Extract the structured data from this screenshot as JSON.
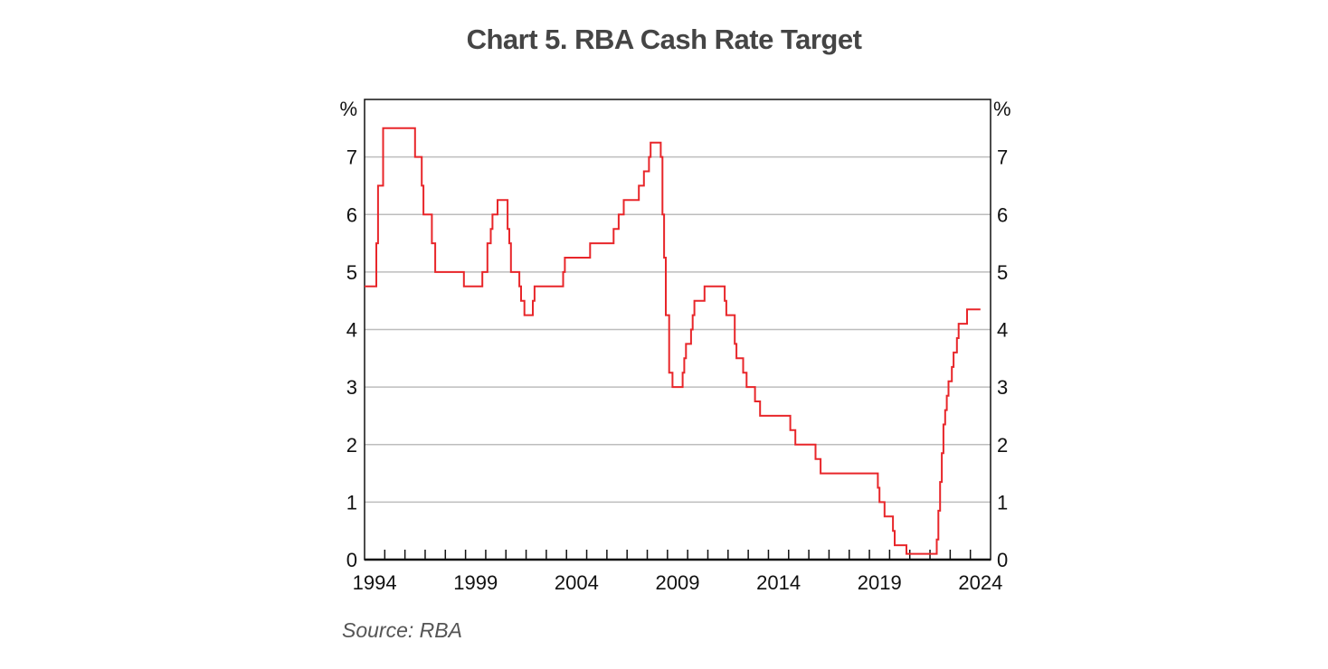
{
  "title": "Chart 5. RBA Cash Rate Target",
  "source": "Source: RBA",
  "chart_data": {
    "type": "line",
    "step": true,
    "title": "Chart 5. RBA Cash Rate Target",
    "ylabel_left": "%",
    "ylabel_right": "%",
    "xlim": [
      1994,
      2025
    ],
    "ylim": [
      0,
      8
    ],
    "y_ticks": [
      0,
      1,
      2,
      3,
      4,
      5,
      6,
      7
    ],
    "x_tick_labels": [
      "1994",
      "1999",
      "2004",
      "2009",
      "2014",
      "2019",
      "2024"
    ],
    "grid": "horizontal",
    "line_color": "#e8262a",
    "grid_color": "#bdbdbd",
    "series": [
      {
        "points": [
          [
            "1994-01",
            4.75
          ],
          [
            "1994-08",
            5.5
          ],
          [
            "1994-09",
            6.5
          ],
          [
            "1994-12",
            7.5
          ],
          [
            "1996-07",
            7.0
          ],
          [
            "1996-11",
            6.5
          ],
          [
            "1996-12",
            6.0
          ],
          [
            "1997-05",
            5.5
          ],
          [
            "1997-07",
            5.0
          ],
          [
            "1998-12",
            4.75
          ],
          [
            "1999-11",
            5.0
          ],
          [
            "2000-02",
            5.5
          ],
          [
            "2000-04",
            5.75
          ],
          [
            "2000-05",
            6.0
          ],
          [
            "2000-08",
            6.25
          ],
          [
            "2001-02",
            5.75
          ],
          [
            "2001-03",
            5.5
          ],
          [
            "2001-04",
            5.0
          ],
          [
            "2001-09",
            4.75
          ],
          [
            "2001-10",
            4.5
          ],
          [
            "2001-12",
            4.25
          ],
          [
            "2002-05",
            4.5
          ],
          [
            "2002-06",
            4.75
          ],
          [
            "2003-11",
            5.0
          ],
          [
            "2003-12",
            5.25
          ],
          [
            "2005-03",
            5.5
          ],
          [
            "2006-05",
            5.75
          ],
          [
            "2006-08",
            6.0
          ],
          [
            "2006-11",
            6.25
          ],
          [
            "2007-08",
            6.5
          ],
          [
            "2007-11",
            6.75
          ],
          [
            "2008-02",
            7.0
          ],
          [
            "2008-03",
            7.25
          ],
          [
            "2008-09",
            7.0
          ],
          [
            "2008-10",
            6.0
          ],
          [
            "2008-11",
            5.25
          ],
          [
            "2008-12",
            4.25
          ],
          [
            "2009-02",
            3.25
          ],
          [
            "2009-04",
            3.0
          ],
          [
            "2009-10",
            3.25
          ],
          [
            "2009-11",
            3.5
          ],
          [
            "2009-12",
            3.75
          ],
          [
            "2010-03",
            4.0
          ],
          [
            "2010-04",
            4.25
          ],
          [
            "2010-05",
            4.5
          ],
          [
            "2010-11",
            4.75
          ],
          [
            "2011-11",
            4.5
          ],
          [
            "2011-12",
            4.25
          ],
          [
            "2012-05",
            3.75
          ],
          [
            "2012-06",
            3.5
          ],
          [
            "2012-10",
            3.25
          ],
          [
            "2012-12",
            3.0
          ],
          [
            "2013-05",
            2.75
          ],
          [
            "2013-08",
            2.5
          ],
          [
            "2015-02",
            2.25
          ],
          [
            "2015-05",
            2.0
          ],
          [
            "2016-05",
            1.75
          ],
          [
            "2016-08",
            1.5
          ],
          [
            "2019-06",
            1.25
          ],
          [
            "2019-07",
            1.0
          ],
          [
            "2019-10",
            0.75
          ],
          [
            "2020-03",
            0.5
          ],
          [
            "2020-04",
            0.25
          ],
          [
            "2020-11",
            0.1
          ],
          [
            "2022-05",
            0.35
          ],
          [
            "2022-06",
            0.85
          ],
          [
            "2022-07",
            1.35
          ],
          [
            "2022-08",
            1.85
          ],
          [
            "2022-09",
            2.35
          ],
          [
            "2022-10",
            2.6
          ],
          [
            "2022-11",
            2.85
          ],
          [
            "2022-12",
            3.1
          ],
          [
            "2023-02",
            3.35
          ],
          [
            "2023-03",
            3.6
          ],
          [
            "2023-05",
            3.85
          ],
          [
            "2023-06",
            4.1
          ],
          [
            "2023-11",
            4.35
          ],
          [
            "2024-07",
            4.35
          ]
        ]
      }
    ]
  }
}
